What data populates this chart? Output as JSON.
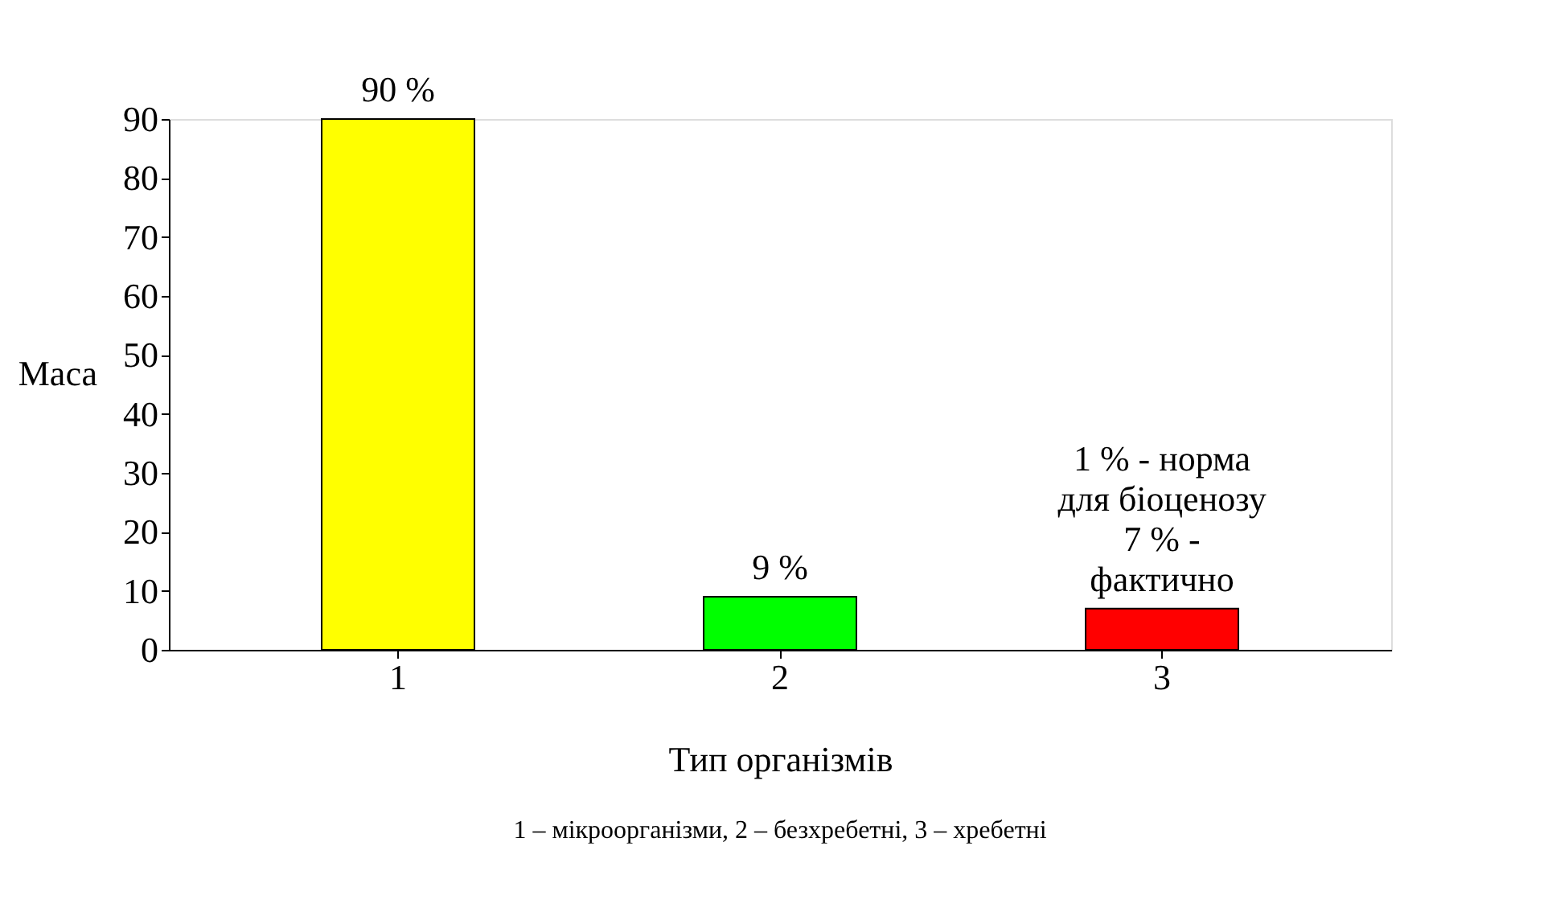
{
  "chart_data": {
    "type": "bar",
    "categories": [
      "1",
      "2",
      "3"
    ],
    "values": [
      90,
      9,
      7
    ],
    "colors": [
      "#ffff00",
      "#00ff00",
      "#ff0000"
    ],
    "value_labels": [
      "90 %",
      "9 %",
      "1 % - норма\nдля біоценозу\n7 % -\nфактично"
    ],
    "xlabel": "Тип організмів",
    "ylabel": "Маса",
    "ylim": [
      0,
      90
    ],
    "yticks": [
      0,
      10,
      20,
      30,
      40,
      50,
      60,
      70,
      80,
      90
    ],
    "grid": false,
    "annotations": [
      "1 – мікроорганізми, 2 – безхребетні, 3 – хребетні"
    ]
  }
}
